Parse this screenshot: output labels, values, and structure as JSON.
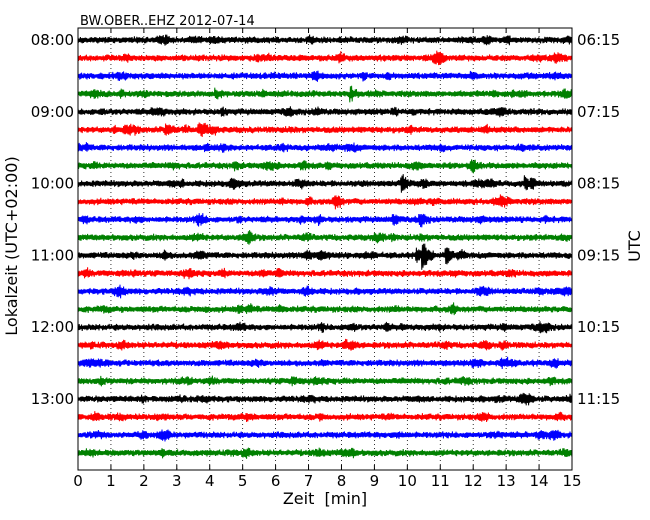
{
  "chart_data": {
    "type": "line",
    "title": "BW.OBER..EHZ 2012-07-14",
    "xlabel": "Zeit  [min]",
    "ylabel_left": "Lokalzeit (UTC+02:00)",
    "ylabel_right": "UTC",
    "xlim": [
      0,
      15
    ],
    "x_ticks": [
      "0",
      "1",
      "2",
      "3",
      "4",
      "5",
      "6",
      "7",
      "8",
      "9",
      "10",
      "11",
      "12",
      "13",
      "14",
      "15"
    ],
    "grid": "vertical dotted",
    "trace_count": 24,
    "trace_colors": [
      "#000000",
      "#ff0000",
      "#0000ff",
      "#008000"
    ],
    "left_labels": [
      {
        "trace": 0,
        "text": "08:00"
      },
      {
        "trace": 4,
        "text": "09:00"
      },
      {
        "trace": 8,
        "text": "10:00"
      },
      {
        "trace": 12,
        "text": "11:00"
      },
      {
        "trace": 16,
        "text": "12:00"
      },
      {
        "trace": 20,
        "text": "13:00"
      }
    ],
    "right_labels": [
      {
        "trace": 0,
        "text": "06:15"
      },
      {
        "trace": 4,
        "text": "07:15"
      },
      {
        "trace": 8,
        "text": "08:15"
      },
      {
        "trace": 12,
        "text": "09:15"
      },
      {
        "trace": 16,
        "text": "10:15"
      },
      {
        "trace": 20,
        "text": "11:15"
      }
    ],
    "events": [
      {
        "trace": 8,
        "x": 9.85,
        "amp": 1.4
      },
      {
        "trace": 8,
        "x": 13.6,
        "amp": 0.9
      },
      {
        "trace": 10,
        "x": 9.6,
        "amp": 0.7
      },
      {
        "trace": 10,
        "x": 10.4,
        "amp": 1.0
      },
      {
        "trace": 12,
        "x": 10.3,
        "amp": 1.0
      },
      {
        "trace": 12,
        "x": 10.5,
        "amp": 2.2
      },
      {
        "trace": 12,
        "x": 11.2,
        "amp": 1.0
      },
      {
        "trace": 5,
        "x": 2.7,
        "amp": 1.0
      },
      {
        "trace": 5,
        "x": 3.7,
        "amp": 0.8
      },
      {
        "trace": 3,
        "x": 8.3,
        "amp": 0.9
      },
      {
        "trace": 3,
        "x": 4.2,
        "amp": 0.6
      }
    ]
  }
}
